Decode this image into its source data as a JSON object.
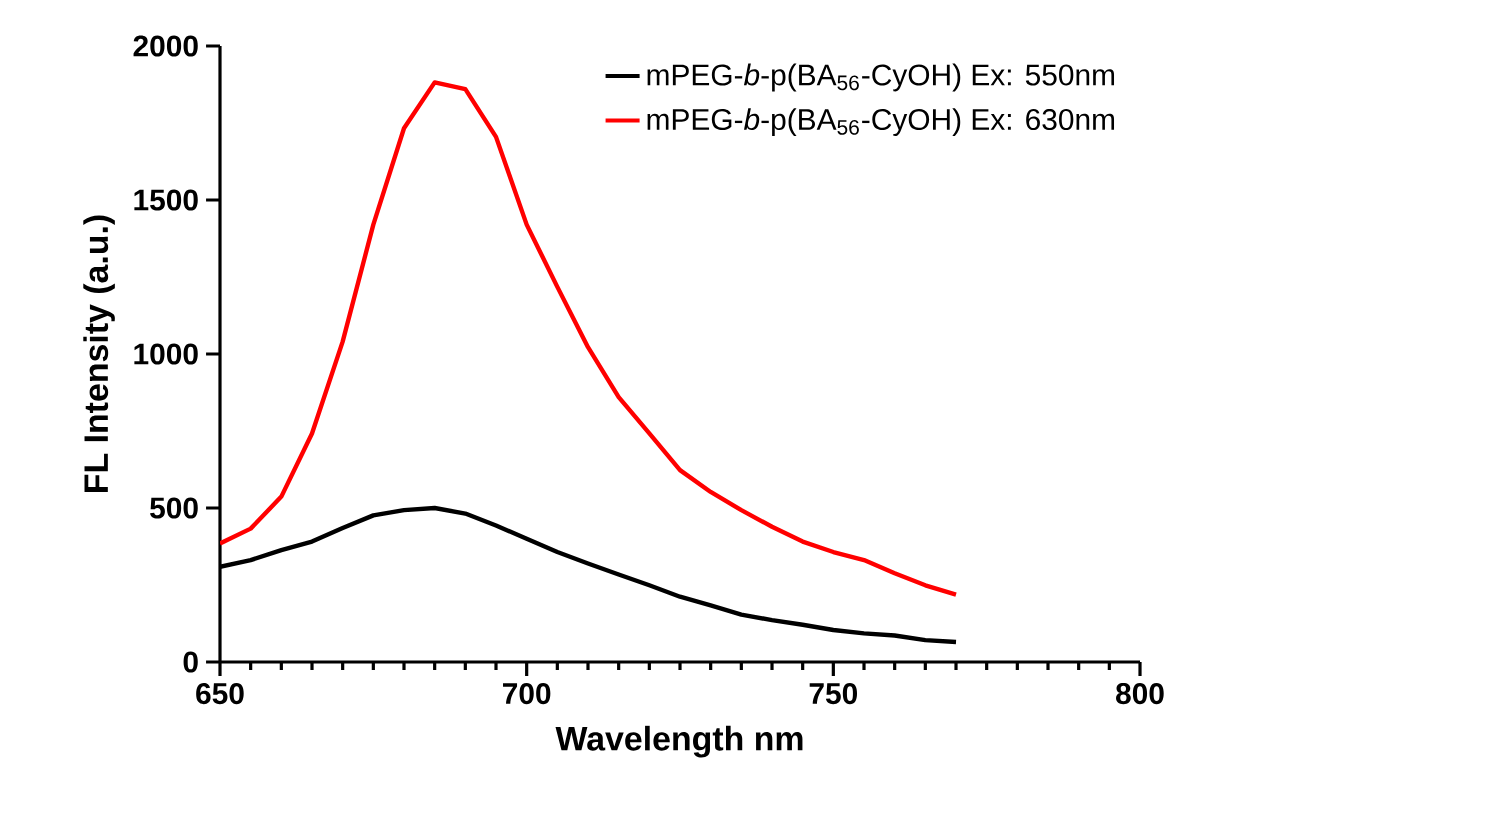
{
  "chart_data": {
    "type": "line",
    "xlabel": "Wavelength nm",
    "ylabel": "FL Intensity (a.u.)",
    "x": [
      650,
      655,
      660,
      665,
      670,
      675,
      680,
      685,
      690,
      695,
      700,
      705,
      710,
      715,
      720,
      725,
      730,
      735,
      740,
      745,
      750,
      755,
      760,
      765,
      770
    ],
    "series": [
      {
        "name": "mPEG-*b*-p(BA$_{56}$-CyOH) Ex: 550nm",
        "color": "#000000",
        "values": [
          309,
          331,
          363,
          391,
          435,
          476,
          493,
          500,
          482,
          443,
          400,
          357,
          320,
          284,
          249,
          212,
          184,
          154,
          136,
          121,
          104,
          93,
          86,
          71,
          65
        ]
      },
      {
        "name": "mPEG-*b*-p(BA$_{56}$-CyOH) Ex: 630nm",
        "color": "#ff0000",
        "values": [
          385,
          433,
          537,
          742,
          1040,
          1420,
          1733,
          1882,
          1860,
          1705,
          1420,
          1218,
          1022,
          860,
          742,
          623,
          552,
          493,
          439,
          391,
          357,
          331,
          288,
          249,
          219
        ]
      }
    ],
    "xlim": [
      650,
      800
    ],
    "xticks": [
      650,
      700,
      750,
      800
    ],
    "ylim": [
      0,
      2000
    ],
    "yticks": [
      0,
      500,
      1000,
      1500,
      2000
    ],
    "grid": false,
    "legend": "top right",
    "marker": "none",
    "line_style": "solid"
  }
}
